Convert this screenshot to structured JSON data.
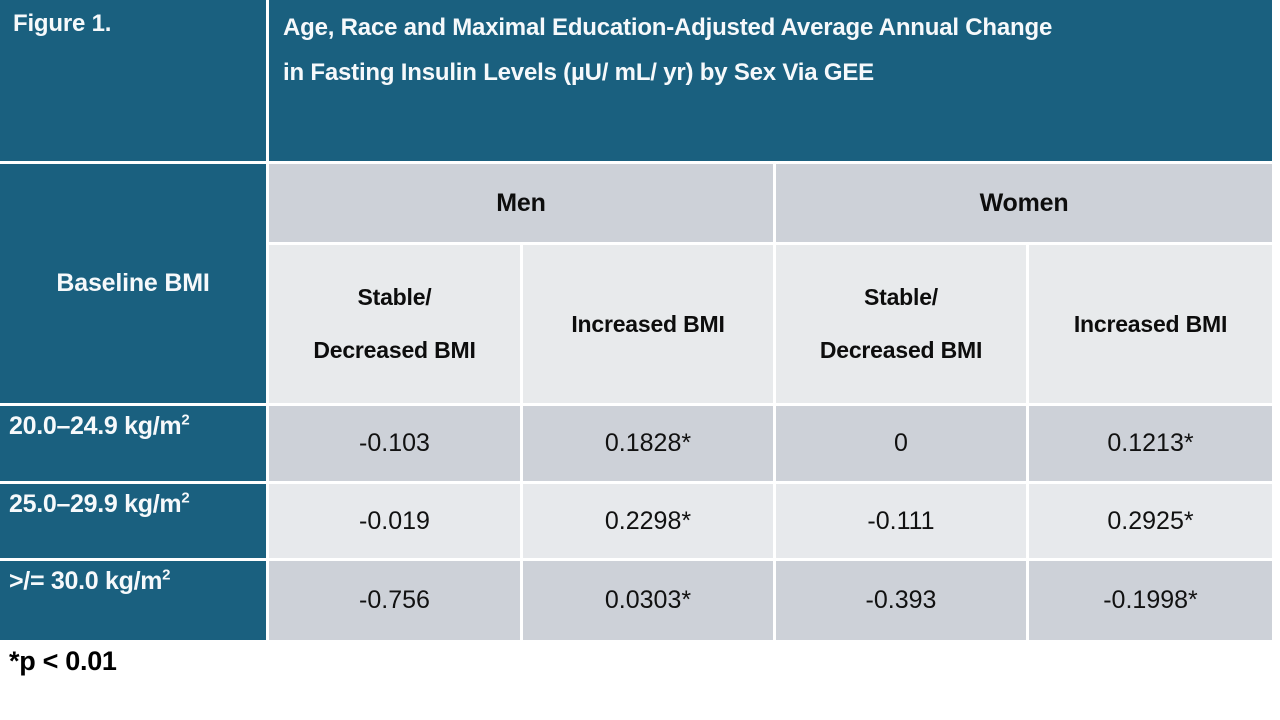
{
  "figure": {
    "label": "Figure 1.",
    "title_line1": "Age, Race and Maximal Education-Adjusted Average Annual Change",
    "title_line2": "in Fasting Insulin Levels (µU/ mL/ yr) by Sex Via GEE",
    "footnote": "*p < 0.01"
  },
  "table": {
    "row_header_title": "Baseline BMI",
    "groups": [
      {
        "label": "Men"
      },
      {
        "label": "Women"
      }
    ],
    "sub_headers": [
      {
        "line1": "Stable/",
        "line2": "Decreased BMI"
      },
      {
        "line1": "Increased BMI",
        "line2": ""
      },
      {
        "line1": "Stable/",
        "line2": "Decreased BMI"
      },
      {
        "line1": "Increased BMI",
        "line2": ""
      }
    ],
    "rows": [
      {
        "label_base": "20.0–24.9 kg/m",
        "label_sup": "2",
        "values": [
          "-0.103",
          "0.1828*",
          "0",
          "0.1213*"
        ]
      },
      {
        "label_base": "25.0–29.9 kg/m",
        "label_sup": "2",
        "values": [
          "-0.019",
          "0.2298*",
          "-0.111",
          "0.2925*"
        ]
      },
      {
        "label_base": ">/= 30.0 kg/m",
        "label_sup": "2",
        "values": [
          "-0.756",
          "0.0303*",
          "-0.393",
          "-0.1998*"
        ]
      }
    ]
  },
  "colors": {
    "teal_header": "#1a607f",
    "group_band_grey": "#cdd1d8",
    "subheader_grey": "#e8eaec",
    "row_dark_grey": "#cdd1d8",
    "row_light_grey": "#e7e9ec",
    "text_dark": "#0d0d0d",
    "text_light": "#ffffff"
  },
  "chart_data": {
    "type": "table",
    "title": "Age, Race and Maximal Education-Adjusted Average Annual Change in Fasting Insulin Levels (µU/ mL/ yr) by Sex Via GEE",
    "figure_label": "Figure 1.",
    "row_axis_label": "Baseline BMI",
    "column_groups": [
      "Men",
      "Women"
    ],
    "columns": [
      "Men - Stable/Decreased BMI",
      "Men - Increased BMI",
      "Women - Stable/Decreased BMI",
      "Women - Increased BMI"
    ],
    "rows": [
      "20.0–24.9 kg/m2",
      "25.0–29.9 kg/m2",
      ">/= 30.0 kg/m2"
    ],
    "values": [
      [
        -0.103,
        0.1828,
        0,
        0.1213
      ],
      [
        -0.019,
        0.2298,
        -0.111,
        0.2925
      ],
      [
        -0.756,
        0.0303,
        -0.393,
        -0.1998
      ]
    ],
    "significant_p_lt_0_01": [
      [
        false,
        true,
        false,
        true
      ],
      [
        false,
        true,
        false,
        true
      ],
      [
        false,
        true,
        false,
        true
      ]
    ],
    "footnote": "*p < 0.01"
  }
}
